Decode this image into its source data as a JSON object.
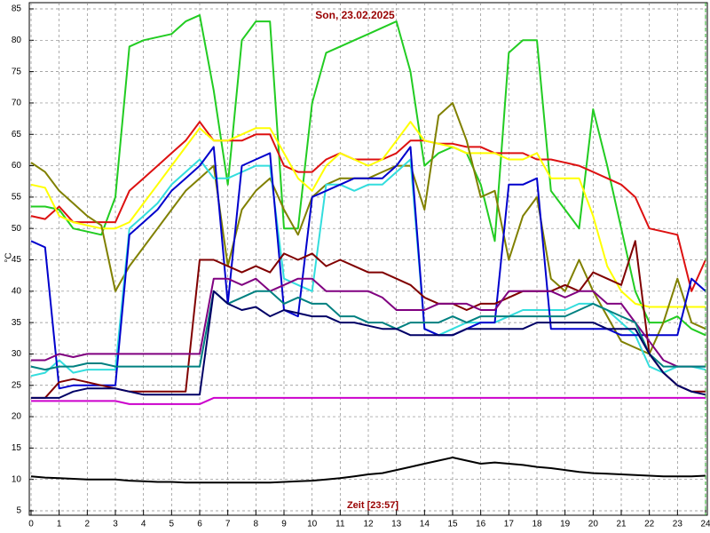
{
  "chart_data": {
    "type": "line",
    "title": "Son, 23.02.2025",
    "x_label": "Zeit [23:57]",
    "y_label": "°C",
    "xlim": [
      0,
      24
    ],
    "ylim": [
      5,
      85
    ],
    "xticks": [
      0,
      1,
      2,
      3,
      4,
      5,
      6,
      7,
      8,
      9,
      10,
      11,
      12,
      13,
      14,
      15,
      16,
      17,
      18,
      19,
      20,
      21,
      22,
      23,
      24
    ],
    "yticks": [
      5,
      10,
      15,
      20,
      25,
      30,
      35,
      40,
      45,
      50,
      55,
      60,
      65,
      70,
      75,
      80,
      85
    ],
    "grid": true,
    "x": [
      0,
      0.5,
      1,
      1.5,
      2,
      2.5,
      3,
      3.5,
      4,
      4.5,
      5,
      5.5,
      6,
      6.5,
      7,
      7.5,
      8,
      8.5,
      9,
      9.5,
      10,
      10.5,
      11,
      11.5,
      12,
      12.5,
      13,
      13.5,
      14,
      14.5,
      15,
      15.5,
      16,
      16.5,
      17,
      17.5,
      18,
      18.5,
      19,
      19.5,
      20,
      20.5,
      21,
      21.5,
      22,
      22.5,
      23,
      23.5,
      24
    ],
    "series": [
      {
        "color": "#22cc22",
        "values": [
          53.5,
          53.5,
          53,
          50,
          49.5,
          49,
          55,
          79,
          80,
          80.5,
          81,
          83,
          84,
          72,
          57,
          80,
          83,
          83,
          50,
          50,
          70,
          78,
          79,
          80,
          81,
          82,
          83,
          75,
          60,
          62,
          63,
          62,
          57,
          48,
          78,
          80,
          80,
          56,
          53,
          50,
          69,
          60,
          50,
          40,
          35,
          35,
          36,
          34,
          33
        ]
      },
      {
        "color": "#dd1111",
        "values": [
          52,
          51.5,
          53.5,
          51,
          51,
          51,
          51,
          56,
          58,
          60,
          62,
          64,
          67,
          64,
          64,
          64,
          65,
          65,
          60,
          59,
          59,
          61,
          62,
          61,
          61,
          61,
          62,
          64,
          64,
          63.5,
          63.5,
          63,
          63,
          62,
          62,
          62,
          61,
          61,
          60.5,
          60,
          59,
          58,
          57,
          55,
          50,
          49.5,
          49,
          40,
          45
        ]
      },
      {
        "color": "#ffff00",
        "values": [
          57,
          56.5,
          52,
          51,
          50.5,
          50,
          50,
          51,
          54,
          57,
          60,
          63,
          66,
          64,
          64,
          65,
          66,
          66,
          62,
          58,
          56,
          60,
          62,
          61,
          60,
          61,
          64,
          67,
          64,
          63.5,
          63,
          62,
          62,
          62,
          61,
          61,
          62,
          58,
          58,
          58,
          52,
          44,
          40,
          38,
          37.5,
          37.5,
          37.5,
          37.5,
          37.5
        ]
      },
      {
        "color": "#808000",
        "values": [
          60.5,
          59,
          56,
          54,
          52,
          50.5,
          40,
          44,
          47,
          50,
          53,
          56,
          58,
          60,
          44,
          53,
          56,
          58,
          53,
          49,
          55,
          57,
          58,
          58,
          58,
          59,
          60,
          60,
          53,
          68,
          70,
          64,
          55,
          56,
          45,
          52,
          55,
          42,
          40,
          45,
          40,
          36,
          32,
          31,
          30,
          35,
          42,
          35,
          34
        ]
      },
      {
        "color": "#33dddd",
        "values": [
          26.5,
          27,
          29,
          27,
          27.5,
          27.5,
          27.5,
          50,
          52,
          54,
          57,
          59,
          61,
          58,
          58,
          59,
          60,
          60,
          42,
          41,
          40,
          57,
          57,
          56,
          57,
          57,
          59,
          61,
          34,
          33,
          34,
          35,
          35,
          35,
          36,
          37,
          37,
          37,
          37,
          38,
          38,
          37,
          35,
          33,
          28,
          27,
          28,
          28,
          27.5
        ]
      },
      {
        "color": "#0000cc",
        "values": [
          48,
          47,
          24.5,
          25,
          25,
          25,
          25,
          49,
          51,
          53,
          56,
          58,
          60,
          63,
          38,
          60,
          61,
          62,
          37,
          36,
          55,
          56,
          57,
          58,
          58,
          58,
          60,
          63,
          34,
          33,
          33,
          34,
          35,
          35,
          57,
          57,
          58,
          34,
          34,
          34,
          34,
          34,
          33,
          33,
          33,
          33,
          33,
          42,
          40
        ]
      },
      {
        "color": "#800000",
        "values": [
          23,
          23,
          25.5,
          26,
          25.5,
          25,
          24.5,
          24,
          24,
          24,
          24,
          24,
          45,
          45,
          44,
          43,
          44,
          43,
          46,
          45,
          46,
          44,
          45,
          44,
          43,
          43,
          42,
          41,
          39,
          38,
          38,
          37,
          38,
          38,
          39,
          40,
          40,
          40,
          41,
          40,
          43,
          42,
          41,
          48,
          30,
          27,
          25,
          24,
          24
        ]
      },
      {
        "color": "#800080",
        "values": [
          29,
          29,
          30,
          29.5,
          30,
          30,
          30,
          30,
          30,
          30,
          30,
          30,
          30,
          42,
          42,
          41,
          42,
          40,
          41,
          42,
          42,
          40,
          40,
          40,
          40,
          39,
          37,
          37,
          37,
          38,
          38,
          38,
          37,
          37,
          40,
          40,
          40,
          40,
          39,
          40,
          40,
          38,
          38,
          35,
          32,
          29,
          28,
          28,
          28
        ]
      },
      {
        "color": "#008080",
        "values": [
          28,
          27.5,
          28,
          28,
          28.5,
          28.5,
          28,
          28,
          28,
          28,
          28,
          28,
          28,
          40,
          38,
          39,
          40,
          40,
          38,
          39,
          38,
          38,
          36,
          36,
          35,
          35,
          34,
          35,
          35,
          35,
          36,
          35,
          36,
          36,
          36,
          36,
          36,
          36,
          36,
          37,
          38,
          37,
          36,
          35,
          30,
          28,
          28,
          28,
          28
        ]
      },
      {
        "color": "#000066",
        "values": [
          23,
          23,
          23,
          24,
          24.5,
          24.5,
          24.5,
          24,
          23.5,
          23.5,
          23.5,
          23.5,
          23.5,
          40,
          38,
          37,
          37.5,
          36,
          37,
          36.5,
          36,
          36,
          35,
          35,
          34.5,
          34,
          34,
          33,
          33,
          33,
          33,
          34,
          34,
          34,
          34,
          34,
          35,
          35,
          35,
          35,
          35,
          34,
          34,
          34,
          30,
          27,
          25,
          24,
          23.5
        ]
      },
      {
        "color": "#cc00cc",
        "values": [
          22.5,
          22.5,
          22.5,
          22.5,
          22.5,
          22.5,
          22.5,
          22,
          22,
          22,
          22,
          22,
          22,
          23,
          23,
          23,
          23,
          23,
          23,
          23,
          23,
          23,
          23,
          23,
          23,
          23,
          23,
          23,
          23,
          23,
          23,
          23,
          23,
          23,
          23,
          23,
          23,
          23,
          23,
          23,
          23,
          23,
          23,
          23,
          23,
          23,
          23,
          23,
          23
        ]
      },
      {
        "color": "#000000",
        "values": [
          10.5,
          10.3,
          10.2,
          10.1,
          10,
          10,
          10,
          9.8,
          9.7,
          9.6,
          9.6,
          9.5,
          9.5,
          9.5,
          9.5,
          9.5,
          9.5,
          9.5,
          9.6,
          9.7,
          9.8,
          10,
          10.2,
          10.5,
          10.8,
          11,
          11.5,
          12,
          12.5,
          13,
          13.5,
          13,
          12.5,
          12.7,
          12.5,
          12.3,
          12,
          11.8,
          11.5,
          11.2,
          11,
          10.9,
          10.8,
          10.7,
          10.6,
          10.5,
          10.5,
          10.5,
          10.6
        ]
      }
    ]
  }
}
